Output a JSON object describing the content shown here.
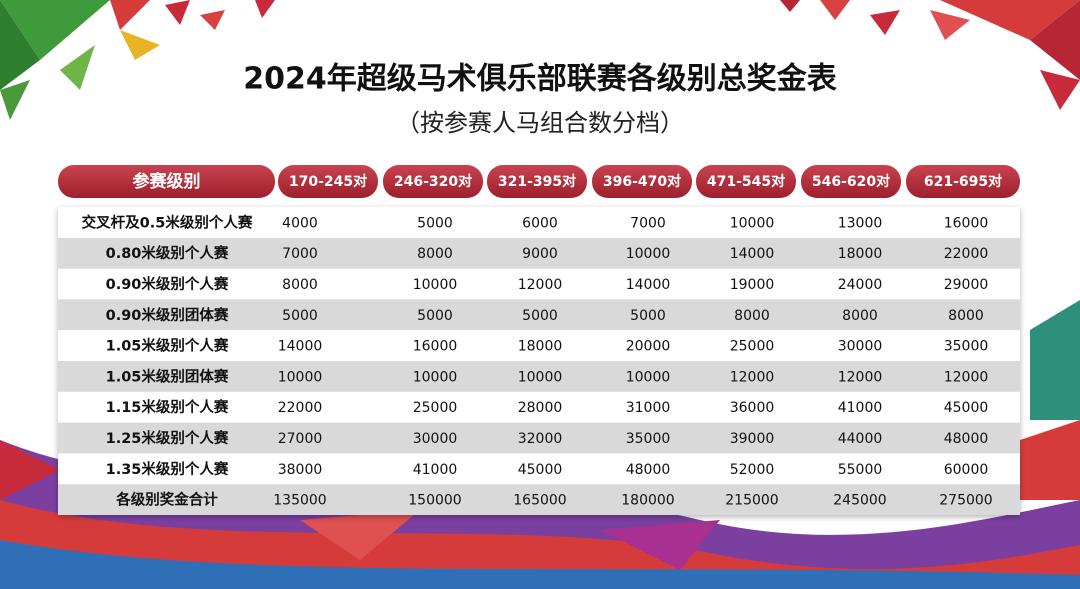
{
  "header": {
    "title": "2024年超级马术俱乐部联赛各级别总奖金表",
    "subtitle": "（按参赛人马组合数分档）"
  },
  "table": {
    "columns": [
      "参赛级别",
      "170-245对",
      "246-320对",
      "321-395对",
      "396-470对",
      "471-545对",
      "546-620对",
      "621-695对"
    ],
    "rows": [
      [
        "交叉杆及0.5米级别个人赛",
        4000,
        5000,
        6000,
        7000,
        10000,
        13000,
        16000
      ],
      [
        "0.80米级别个人赛",
        7000,
        8000,
        9000,
        10000,
        14000,
        18000,
        22000
      ],
      [
        "0.90米级别个人赛",
        8000,
        10000,
        12000,
        14000,
        19000,
        24000,
        29000
      ],
      [
        "0.90米级别团体赛",
        5000,
        5000,
        5000,
        5000,
        8000,
        8000,
        8000
      ],
      [
        "1.05米级别个人赛",
        14000,
        16000,
        18000,
        20000,
        25000,
        30000,
        35000
      ],
      [
        "1.05米级别团体赛",
        10000,
        10000,
        10000,
        10000,
        12000,
        12000,
        12000
      ],
      [
        "1.15米级别个人赛",
        22000,
        25000,
        28000,
        31000,
        36000,
        41000,
        45000
      ],
      [
        "1.25米级别个人赛",
        27000,
        30000,
        32000,
        35000,
        39000,
        44000,
        48000
      ],
      [
        "1.35米级别个人赛",
        38000,
        41000,
        45000,
        48000,
        52000,
        55000,
        60000
      ],
      [
        "各级别奖金合计",
        135000,
        150000,
        165000,
        180000,
        215000,
        245000,
        275000
      ]
    ]
  }
}
